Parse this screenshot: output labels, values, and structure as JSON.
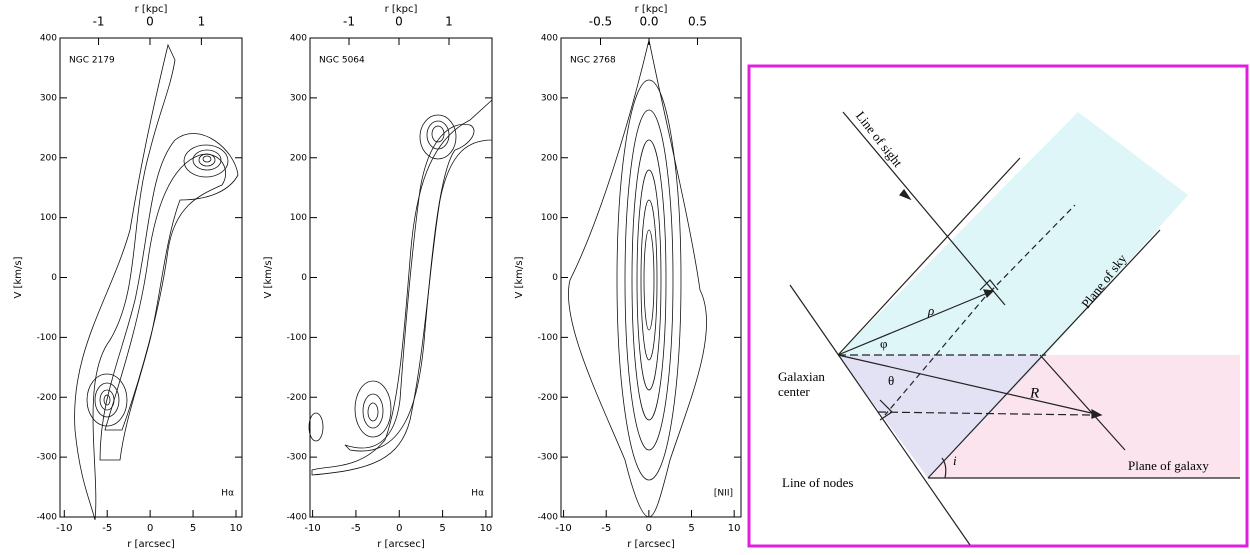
{
  "panels": [
    {
      "name": "NGC 2179",
      "line": "Hα",
      "top_label": "r [kpc]",
      "xlabel": "r [arcsec]",
      "ylabel": "V [km/s]",
      "xlim": [
        -10.5,
        10.7
      ],
      "xticks": [
        -10,
        -5,
        0,
        5,
        10
      ],
      "x2lim": [
        -1.75,
        1.79
      ],
      "x2ticks": [
        -1,
        0,
        1
      ],
      "ylim": [
        -400,
        400
      ],
      "yticks": [
        -400,
        -300,
        -200,
        -100,
        0,
        100,
        200,
        300,
        400
      ]
    },
    {
      "name": "NGC 5064",
      "line": "Hα",
      "top_label": "r [kpc]",
      "xlabel": "r [arcsec]",
      "ylabel": "V [km/s]",
      "xlim": [
        -10.3,
        10.7
      ],
      "xticks": [
        -10,
        -5,
        0,
        5,
        10
      ],
      "x2lim": [
        -1.78,
        1.86
      ],
      "x2ticks": [
        -1,
        0,
        1
      ],
      "ylim": [
        -400,
        400
      ],
      "yticks": [
        -400,
        -300,
        -200,
        -100,
        0,
        100,
        200,
        300,
        400
      ]
    },
    {
      "name": "NGC 2768",
      "line": "[NII]",
      "top_label": "r [kpc]",
      "xlabel": "r [arcsec]",
      "ylabel": "V [km/s]",
      "xlim": [
        -10.3,
        10.8
      ],
      "xticks": [
        -10,
        -5,
        0,
        5,
        10
      ],
      "x2lim": [
        -0.907,
        0.948
      ],
      "x2ticks": [
        -0.5,
        {
          "value": 0,
          "label": "0.0"
        },
        0.5
      ],
      "ylim": [
        -400,
        400
      ],
      "yticks": [
        -400,
        -300,
        -200,
        -100,
        0,
        100,
        200,
        300,
        400
      ]
    }
  ],
  "diagram": {
    "line_of_sight": "Line of sight",
    "plane_of_sky": "Plane of sky",
    "rho": "ρ",
    "phi": "φ",
    "theta": "θ",
    "galaxian_center": [
      "Galaxian",
      "center"
    ],
    "R": "R",
    "line_of_nodes": "Line of nodes",
    "i": "i",
    "plane_of_galaxy": "Plane of galaxy"
  }
}
